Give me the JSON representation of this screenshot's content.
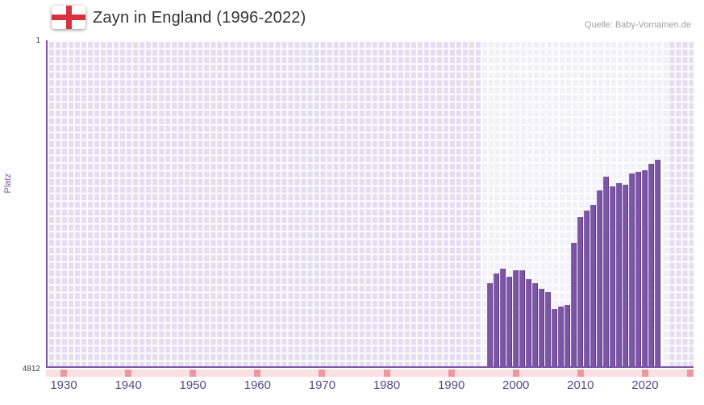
{
  "header": {
    "title": "Zayn in England (1996-2022)",
    "source": "Quelle: Baby-Vornamen.de",
    "flag_icon": "england-flag"
  },
  "colors": {
    "flag_red": "#d8323f",
    "title": "#333333",
    "source": "#9e9e9e",
    "bar": "#7c55a6",
    "axis": "#7c55a6",
    "plot_bg": "#e3dff0",
    "grid_line": "#ffffff",
    "highlight_band": "rgba(255,255,255,0.55)",
    "strip_bg": "#fadfe3",
    "strip_mark": "#ef97a0",
    "tick_label": "#564a85"
  },
  "chart_data": {
    "type": "bar",
    "title": "Zayn in England (1996-2022)",
    "xlabel": "",
    "ylabel": "Platz",
    "grid": true,
    "legend": false,
    "y_axis": {
      "min": 1,
      "max": 4812,
      "inverted": true,
      "top_tick": "1",
      "bottom_tick": "4812"
    },
    "x_axis": {
      "min": 1927.5,
      "max": 2027.5,
      "ticks": [
        "1930",
        "1940",
        "1950",
        "1960",
        "1970",
        "1980",
        "1990",
        "2000",
        "2010",
        "2020"
      ]
    },
    "highlight_band": {
      "start": 1994.5,
      "end": 2023.5
    },
    "bar_width_years": 0.88,
    "series": [
      {
        "name": "Platz",
        "x": [
          1996,
          1997,
          1998,
          1999,
          2000,
          2001,
          2002,
          2003,
          2004,
          2005,
          2006,
          2007,
          2008,
          2009,
          2010,
          2011,
          2012,
          2013,
          2014,
          2015,
          2016,
          2017,
          2018,
          2019,
          2020,
          2021,
          2022
        ],
        "values": [
          3580,
          3440,
          3370,
          3490,
          3400,
          3390,
          3530,
          3580,
          3670,
          3720,
          3970,
          3935,
          3910,
          2990,
          2610,
          2510,
          2430,
          2220,
          2015,
          2160,
          2110,
          2135,
          1970,
          1945,
          1920,
          1825,
          1765
        ]
      }
    ]
  }
}
